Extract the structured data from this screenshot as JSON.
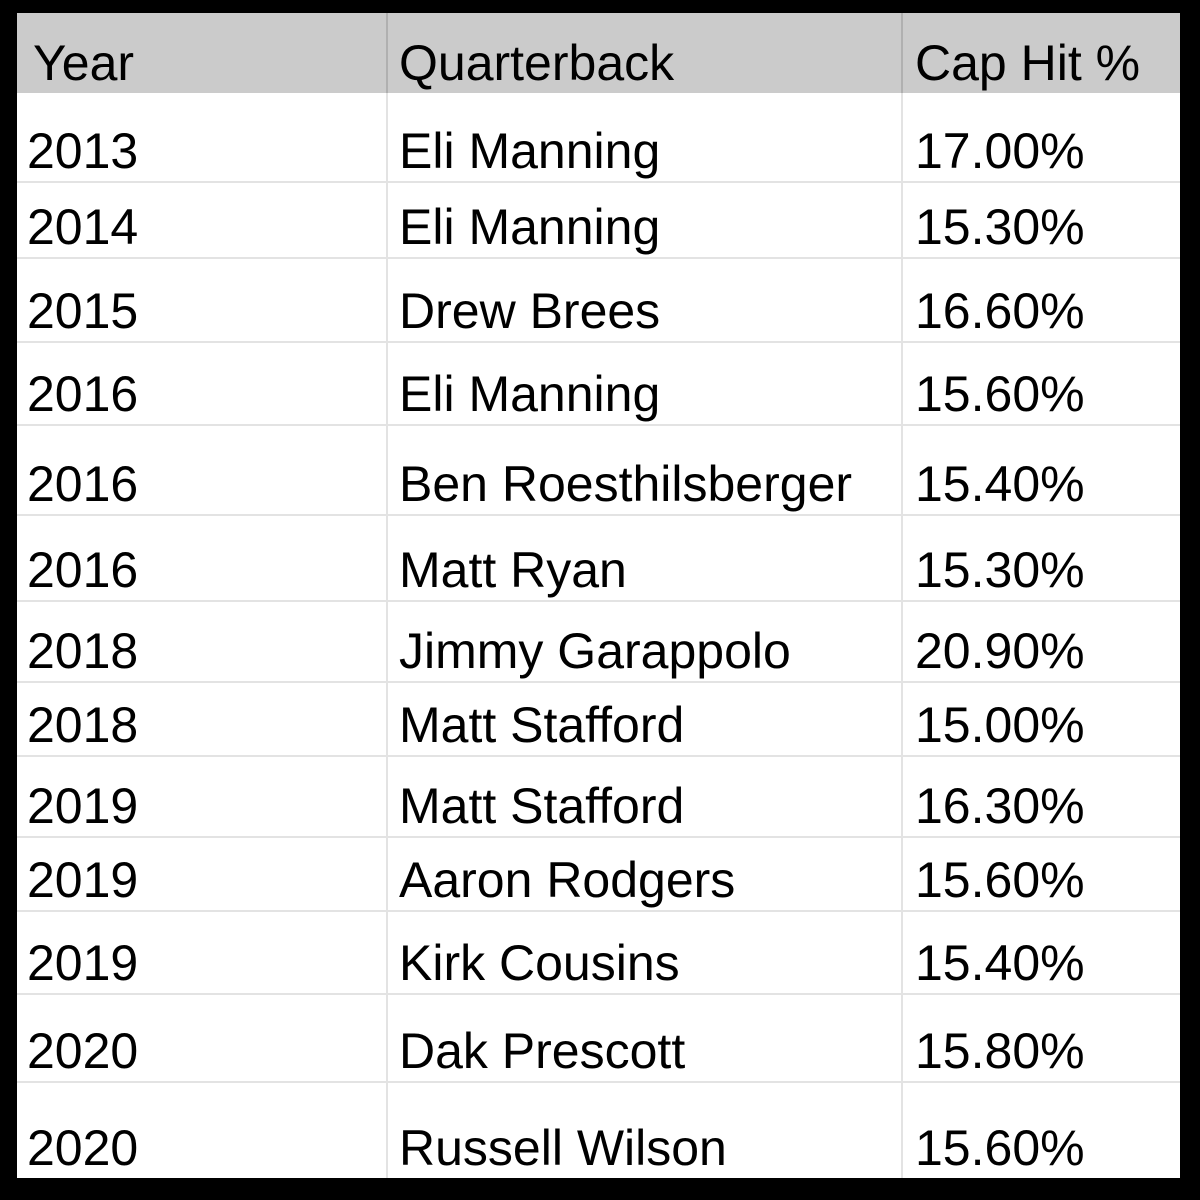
{
  "table": {
    "columns": [
      {
        "key": "year",
        "label": "Year"
      },
      {
        "key": "quarterback",
        "label": "Quarterback"
      },
      {
        "key": "cap_hit",
        "label": "Cap Hit %"
      }
    ],
    "rows": [
      {
        "year": "2013",
        "quarterback": "Eli Manning",
        "cap_hit": "17.00%"
      },
      {
        "year": "2014",
        "quarterback": "Eli Manning",
        "cap_hit": "15.30%"
      },
      {
        "year": "2015",
        "quarterback": "Drew Brees",
        "cap_hit": "16.60%"
      },
      {
        "year": "2016",
        "quarterback": "Eli Manning",
        "cap_hit": "15.60%"
      },
      {
        "year": "2016",
        "quarterback": "Ben Roesthilsberger",
        "cap_hit": "15.40%"
      },
      {
        "year": "2016",
        "quarterback": "Matt Ryan",
        "cap_hit": "15.30%"
      },
      {
        "year": "2018",
        "quarterback": "Jimmy Garappolo",
        "cap_hit": "20.90%"
      },
      {
        "year": "2018",
        "quarterback": "Matt Stafford",
        "cap_hit": "15.00%"
      },
      {
        "year": "2019",
        "quarterback": "Matt Stafford",
        "cap_hit": "16.30%"
      },
      {
        "year": "2019",
        "quarterback": "Aaron Rodgers",
        "cap_hit": "15.60%"
      },
      {
        "year": "2019",
        "quarterback": "Kirk Cousins",
        "cap_hit": "15.40%"
      },
      {
        "year": "2020",
        "quarterback": "Dak Prescott",
        "cap_hit": "15.80%"
      },
      {
        "year": "2020",
        "quarterback": "Russell Wilson",
        "cap_hit": "15.60%"
      }
    ],
    "colors": {
      "background": "#000000",
      "header_bg": "#cbcbcb",
      "row_bg": "#ffffff",
      "grid_line": "#e3e3e3",
      "header_grid_line": "#b0b0b0",
      "text": "#000000"
    }
  }
}
